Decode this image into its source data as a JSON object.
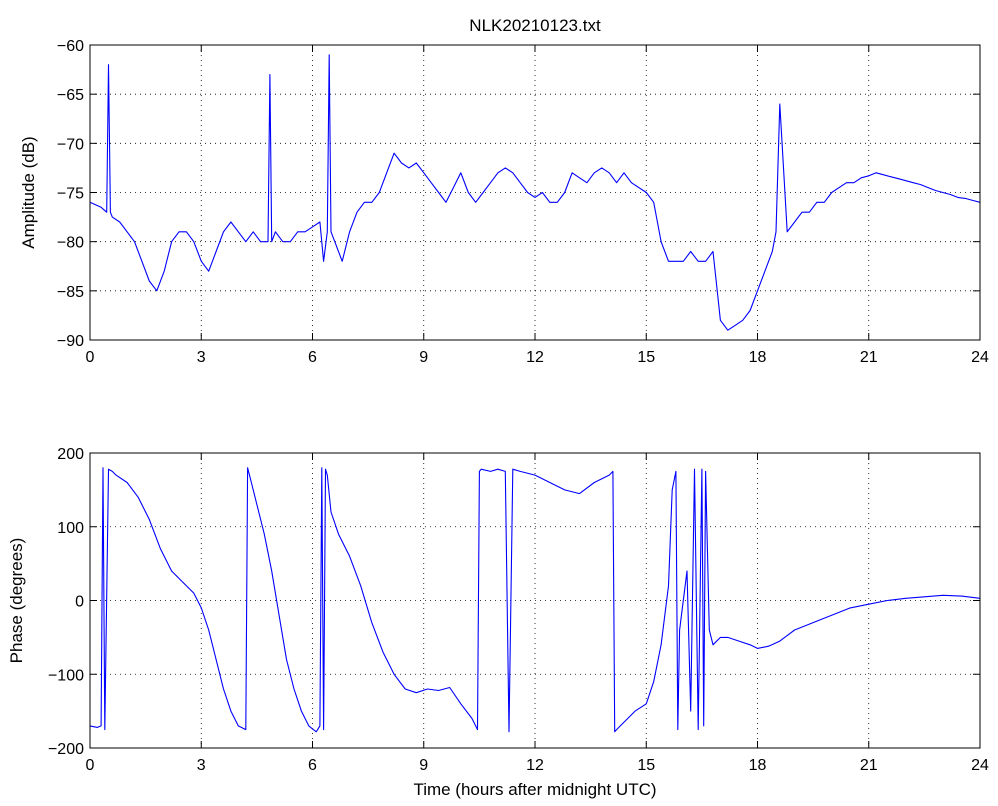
{
  "chart_data": [
    {
      "type": "line",
      "title": "NLK20210123.txt",
      "xlabel": "",
      "ylabel": "Amplitude (dB)",
      "xlim": [
        0,
        24
      ],
      "ylim": [
        -90,
        -60
      ],
      "xticks": [
        0,
        3,
        6,
        9,
        12,
        15,
        18,
        21,
        24
      ],
      "yticks": [
        -60,
        -65,
        -70,
        -75,
        -80,
        -85,
        -90
      ],
      "grid": true,
      "color": "#0000ff",
      "series": [
        {
          "x": [
            0,
            0.3,
            0.45,
            0.5,
            0.55,
            0.6,
            0.8,
            1.0,
            1.2,
            1.4,
            1.6,
            1.8,
            2.0,
            2.2,
            2.4,
            2.6,
            2.8,
            3.0,
            3.2,
            3.4,
            3.6,
            3.8,
            4.0,
            4.2,
            4.4,
            4.6,
            4.8,
            4.85,
            4.9,
            5.0,
            5.2,
            5.4,
            5.6,
            5.8,
            6.0,
            6.2,
            6.3,
            6.4,
            6.45,
            6.5,
            6.6,
            6.8,
            7.0,
            7.2,
            7.4,
            7.6,
            7.8,
            8.0,
            8.2,
            8.4,
            8.6,
            8.8,
            9.0,
            9.2,
            9.4,
            9.6,
            9.8,
            10.0,
            10.2,
            10.4,
            10.6,
            10.8,
            11.0,
            11.2,
            11.4,
            11.6,
            11.8,
            12.0,
            12.2,
            12.4,
            12.6,
            12.8,
            13.0,
            13.2,
            13.4,
            13.6,
            13.8,
            14.0,
            14.2,
            14.4,
            14.6,
            14.8,
            15.0,
            15.2,
            15.4,
            15.6,
            15.8,
            16.0,
            16.2,
            16.4,
            16.6,
            16.8,
            17.0,
            17.2,
            17.4,
            17.6,
            17.8,
            18.0,
            18.2,
            18.4,
            18.5,
            18.6,
            18.8,
            19.0,
            19.2,
            19.4,
            19.6,
            19.8,
            20.0,
            20.2,
            20.4,
            20.6,
            20.8,
            21.0,
            21.2,
            21.4,
            21.6,
            21.8,
            22.0,
            22.2,
            22.4,
            22.6,
            22.8,
            23.0,
            23.2,
            23.4,
            23.6,
            23.8,
            24.0
          ],
          "values": [
            -76,
            -76.5,
            -77,
            -62,
            -77,
            -77.5,
            -78,
            -79,
            -80,
            -82,
            -84,
            -85,
            -83,
            -80,
            -79,
            -79,
            -80,
            -82,
            -83,
            -81,
            -79,
            -78,
            -79,
            -80,
            -79,
            -80,
            -80,
            -63,
            -80,
            -79,
            -80,
            -80,
            -79,
            -79,
            -78.5,
            -78,
            -82,
            -79,
            -61,
            -79,
            -80,
            -82,
            -79,
            -77,
            -76,
            -76,
            -75,
            -73,
            -71,
            -72,
            -72.5,
            -72,
            -73,
            -74,
            -75,
            -76,
            -74.5,
            -73,
            -75,
            -76,
            -75,
            -74,
            -73,
            -72.5,
            -73,
            -74,
            -75,
            -75.5,
            -75,
            -76,
            -76,
            -75,
            -73,
            -73.5,
            -74,
            -73,
            -72.5,
            -73,
            -74,
            -73,
            -74,
            -74.5,
            -75,
            -76,
            -80,
            -82,
            -82,
            -82,
            -81,
            -82,
            -82,
            -81,
            -88,
            -89,
            -88.5,
            -88,
            -87,
            -85,
            -83,
            -81,
            -79,
            -66,
            -79,
            -78,
            -77,
            -77,
            -76,
            -76,
            -75,
            -74.5,
            -74,
            -74,
            -73.5,
            -73.3,
            -73,
            -73.2,
            -73.4,
            -73.6,
            -73.8,
            -74,
            -74.2,
            -74.5,
            -74.8,
            -75,
            -75.2,
            -75.5,
            -75.6,
            -75.8,
            -76
          ]
        }
      ]
    },
    {
      "type": "line",
      "title": "",
      "xlabel": "Time (hours after midnight UTC)",
      "ylabel": "Phase (degrees)",
      "xlim": [
        0,
        24
      ],
      "ylim": [
        -200,
        200
      ],
      "xticks": [
        0,
        3,
        6,
        9,
        12,
        15,
        18,
        21,
        24
      ],
      "yticks": [
        200,
        100,
        0,
        -100,
        -200
      ],
      "grid": true,
      "color": "#0000ff",
      "series": [
        {
          "x": [
            0,
            0.2,
            0.3,
            0.35,
            0.4,
            0.5,
            0.6,
            0.7,
            1.0,
            1.3,
            1.6,
            1.9,
            2.2,
            2.5,
            2.8,
            3.0,
            3.2,
            3.4,
            3.6,
            3.8,
            4.0,
            4.2,
            4.25,
            4.3,
            4.5,
            4.7,
            4.9,
            5.1,
            5.3,
            5.5,
            5.7,
            5.9,
            6.1,
            6.2,
            6.25,
            6.3,
            6.35,
            6.4,
            6.5,
            6.7,
            7.0,
            7.3,
            7.6,
            7.9,
            8.2,
            8.5,
            8.8,
            9.1,
            9.4,
            9.7,
            10.0,
            10.3,
            10.45,
            10.5,
            10.55,
            10.8,
            11.0,
            11.2,
            11.3,
            11.4,
            11.6,
            12.0,
            12.4,
            12.8,
            13.2,
            13.6,
            14.0,
            14.1,
            14.15,
            14.2,
            14.3,
            14.5,
            14.7,
            15.0,
            15.2,
            15.4,
            15.6,
            15.7,
            15.8,
            15.85,
            15.9,
            16.0,
            16.1,
            16.2,
            16.3,
            16.4,
            16.5,
            16.55,
            16.6,
            16.7,
            16.8,
            17.0,
            17.2,
            17.5,
            17.8,
            18.0,
            18.3,
            18.6,
            19.0,
            19.5,
            20.0,
            20.5,
            21.0,
            21.5,
            22.0,
            22.5,
            23.0,
            23.5,
            24.0
          ],
          "values": [
            -170,
            -172,
            -170,
            180,
            -175,
            178,
            175,
            170,
            160,
            140,
            110,
            70,
            40,
            25,
            10,
            -10,
            -40,
            -80,
            -120,
            -150,
            -170,
            -175,
            180,
            170,
            130,
            90,
            40,
            -20,
            -80,
            -120,
            -150,
            -170,
            -178,
            -170,
            180,
            -175,
            178,
            170,
            120,
            90,
            60,
            20,
            -30,
            -70,
            -100,
            -120,
            -125,
            -120,
            -122,
            -118,
            -140,
            -160,
            -175,
            175,
            178,
            175,
            178,
            175,
            -178,
            178,
            175,
            170,
            160,
            150,
            145,
            160,
            170,
            175,
            -178,
            -175,
            -170,
            -160,
            -150,
            -140,
            -110,
            -60,
            20,
            150,
            175,
            -175,
            -40,
            0,
            40,
            -150,
            178,
            -175,
            178,
            -170,
            175,
            -40,
            -60,
            -50,
            -50,
            -55,
            -60,
            -65,
            -62,
            -55,
            -40,
            -30,
            -20,
            -10,
            -5,
            0,
            3,
            5,
            7,
            6,
            3
          ]
        }
      ]
    }
  ]
}
